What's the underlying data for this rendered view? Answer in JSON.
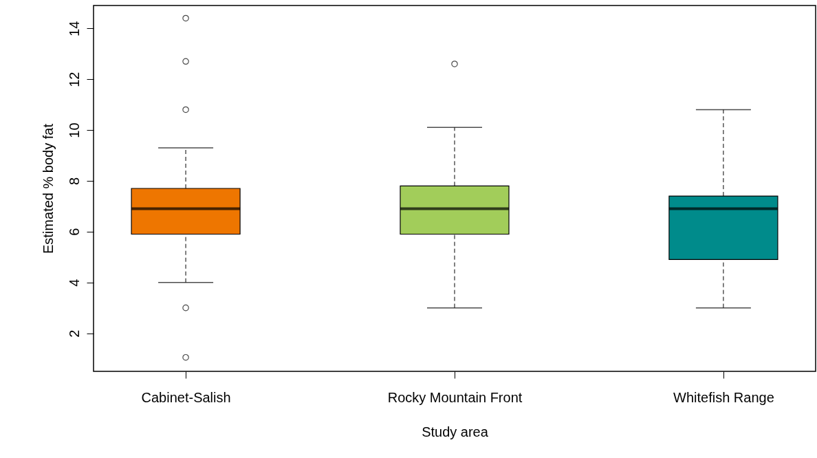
{
  "chart_data": {
    "type": "box",
    "xlabel": "Study area",
    "ylabel": "Estimated % body fat",
    "categories": [
      "Cabinet-Salish",
      "Rocky Mountain Front",
      "Whitefish Range"
    ],
    "colors": [
      "#ee7600",
      "#a2cd5a",
      "#008b8b"
    ],
    "boxes": [
      {
        "low": 4.0,
        "q1": 5.9,
        "median": 6.9,
        "q3": 7.7,
        "high": 9.3,
        "outliers": [
          14.4,
          12.7,
          10.8,
          3.0,
          1.05
        ]
      },
      {
        "low": 3.0,
        "q1": 5.9,
        "median": 6.9,
        "q3": 7.8,
        "high": 10.1,
        "outliers": [
          12.6
        ]
      },
      {
        "low": 3.0,
        "q1": 4.9,
        "median": 6.9,
        "q3": 7.4,
        "high": 10.8
      }
    ],
    "ylim": [
      0.5,
      14.9
    ],
    "yticks": [
      2,
      4,
      6,
      8,
      10,
      12,
      14
    ],
    "grid": false
  }
}
